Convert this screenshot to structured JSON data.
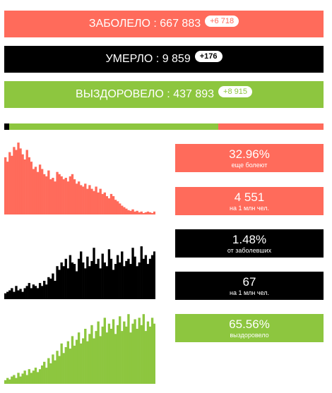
{
  "colors": {
    "cases": "#ff6b5b",
    "deaths": "#000000",
    "recovered": "#8dc63f"
  },
  "bars": {
    "cases": {
      "label": "ЗАБОЛЕЛО : 667 883",
      "delta": "+6 718"
    },
    "deaths": {
      "label": "УМЕРЛО : 9 859",
      "delta": "+176"
    },
    "recovered": {
      "label": "ВЫЗДОРОВЕЛО : 437 893",
      "delta": "+8 915"
    }
  },
  "progress": {
    "deaths_fraction": 0.0148,
    "recovered_fraction": 0.6556,
    "active_fraction": 0.3296
  },
  "cards": {
    "active": {
      "value": "32.96%",
      "caption": "еще болеют"
    },
    "cases_per_million": {
      "value": "4 551",
      "caption": "на 1 млн чел."
    },
    "mortality": {
      "value": "1.48%",
      "caption": "от заболевших"
    },
    "deaths_per_million": {
      "value": "67",
      "caption": "на 1 млн чел."
    },
    "recovery": {
      "value": "65.56%",
      "caption": "выздоровело"
    }
  },
  "chart_data": [
    {
      "type": "bar",
      "series": [
        {
          "values": [
            78,
            72,
            85,
            80,
            92,
            88,
            98,
            90,
            82,
            75,
            88,
            78,
            72,
            62,
            65,
            58,
            68,
            62,
            55,
            52,
            60,
            48,
            50,
            45,
            58,
            55,
            52,
            48,
            50,
            45,
            52,
            55,
            48,
            42,
            45,
            40,
            38,
            42,
            35,
            40,
            35,
            32,
            38,
            30,
            35,
            28,
            30,
            25,
            22,
            28,
            25,
            20,
            18,
            15,
            12,
            10,
            8,
            6,
            5,
            7,
            4,
            5,
            3,
            4,
            2,
            3,
            4,
            3,
            2,
            4
          ]
        }
      ]
    },
    {
      "type": "bar",
      "series": [
        {
          "values": [
            8,
            10,
            12,
            15,
            10,
            18,
            12,
            14,
            10,
            15,
            18,
            22,
            15,
            20,
            18,
            15,
            22,
            18,
            25,
            20,
            30,
            28,
            35,
            25,
            45,
            40,
            50,
            45,
            55,
            42,
            60,
            50,
            48,
            38,
            55,
            65,
            50,
            42,
            58,
            45,
            52,
            70,
            48,
            55,
            42,
            62,
            50,
            45,
            68,
            55,
            40,
            48,
            60,
            50,
            65,
            45,
            52,
            55,
            48,
            70,
            58,
            45,
            50,
            72,
            55,
            60,
            48,
            55,
            60,
            65
          ]
        }
      ]
    },
    {
      "type": "bar",
      "series": [
        {
          "values": [
            5,
            8,
            6,
            10,
            12,
            8,
            15,
            10,
            14,
            18,
            12,
            20,
            15,
            18,
            22,
            16,
            20,
            25,
            30,
            22,
            35,
            28,
            40,
            32,
            45,
            38,
            55,
            42,
            50,
            58,
            48,
            65,
            52,
            60,
            70,
            55,
            62,
            75,
            58,
            68,
            80,
            62,
            72,
            85,
            65,
            78,
            90,
            70,
            82,
            75,
            88,
            68,
            80,
            92,
            72,
            85,
            78,
            95,
            70,
            82,
            88,
            75,
            90,
            80,
            95,
            72,
            85,
            78,
            90,
            82
          ]
        }
      ]
    }
  ]
}
